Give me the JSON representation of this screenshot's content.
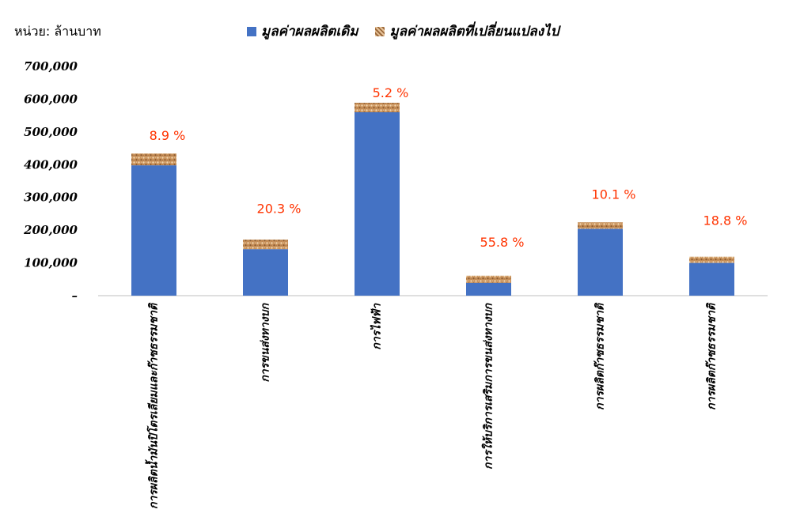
{
  "unit_label": "หน่วย: ล้านบาท",
  "legend": {
    "base_label": "มูลค่าผลผลิตเดิม",
    "change_label": "มูลค่าผลผลิตที่เปลี่ยนแปลงไป"
  },
  "colors": {
    "base": "#4472c4",
    "change": "#c8915a",
    "label": "#ff3300"
  },
  "chart_data": {
    "type": "bar",
    "stacked": true,
    "categories": [
      "การผลิตน้ำมันปิโตรเลียมและก๊าซธรรมชาติ",
      "การขนส่งทางบก",
      "การไฟฟ้า",
      "การให้บริการเสริมการขนส่งทางบก",
      "การผลิตก๊าซธรรมชาติ",
      "การผลิตก๊าซธรรมชาติ"
    ],
    "series": [
      {
        "name": "มูลค่าผลผลิตเดิม",
        "values": [
          398000,
          142000,
          560000,
          39000,
          204000,
          100000
        ]
      },
      {
        "name": "มูลค่าผลผลิตที่เปลี่ยนแปลงไป",
        "values": [
          36000,
          29000,
          29000,
          22000,
          20000,
          19000
        ]
      }
    ],
    "data_labels": [
      "8.9 %",
      "20.3 %",
      "5.2 %",
      "55.8 %",
      "10.1 %",
      "18.8 %"
    ],
    "data_label_values": [
      490000,
      267000,
      620000,
      164000,
      310000,
      230000
    ],
    "yticks": [
      "–",
      "100,000",
      "200,000",
      "300,000",
      "400,000",
      "500,000",
      "600,000",
      "700,000"
    ],
    "ylim": [
      0,
      700000
    ],
    "grid": false,
    "legend_position": "top"
  }
}
